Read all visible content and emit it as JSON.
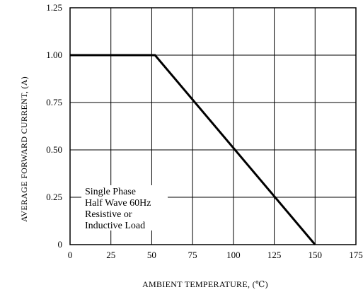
{
  "chart_data": {
    "type": "line",
    "xlabel": "AMBIENT TEMPERATURE, (℃)",
    "ylabel": "AVERAGE FORWARD CURRENT, (A)",
    "xlim": [
      0,
      175
    ],
    "ylim": [
      0,
      1.25
    ],
    "x_ticks": [
      "0",
      "25",
      "50",
      "75",
      "100",
      "125",
      "150",
      "175"
    ],
    "y_ticks": [
      "0",
      "0.25",
      "0.50",
      "0.75",
      "1.00",
      "1.25"
    ],
    "grid": true,
    "series": [
      {
        "x": [
          0,
          52,
          150
        ],
        "y": [
          1.0,
          1.0,
          0
        ],
        "color": "#000000"
      }
    ],
    "annotation": [
      "Single Phase",
      "Half Wave 60Hz",
      "Resistive or",
      "Inductive Load"
    ]
  }
}
